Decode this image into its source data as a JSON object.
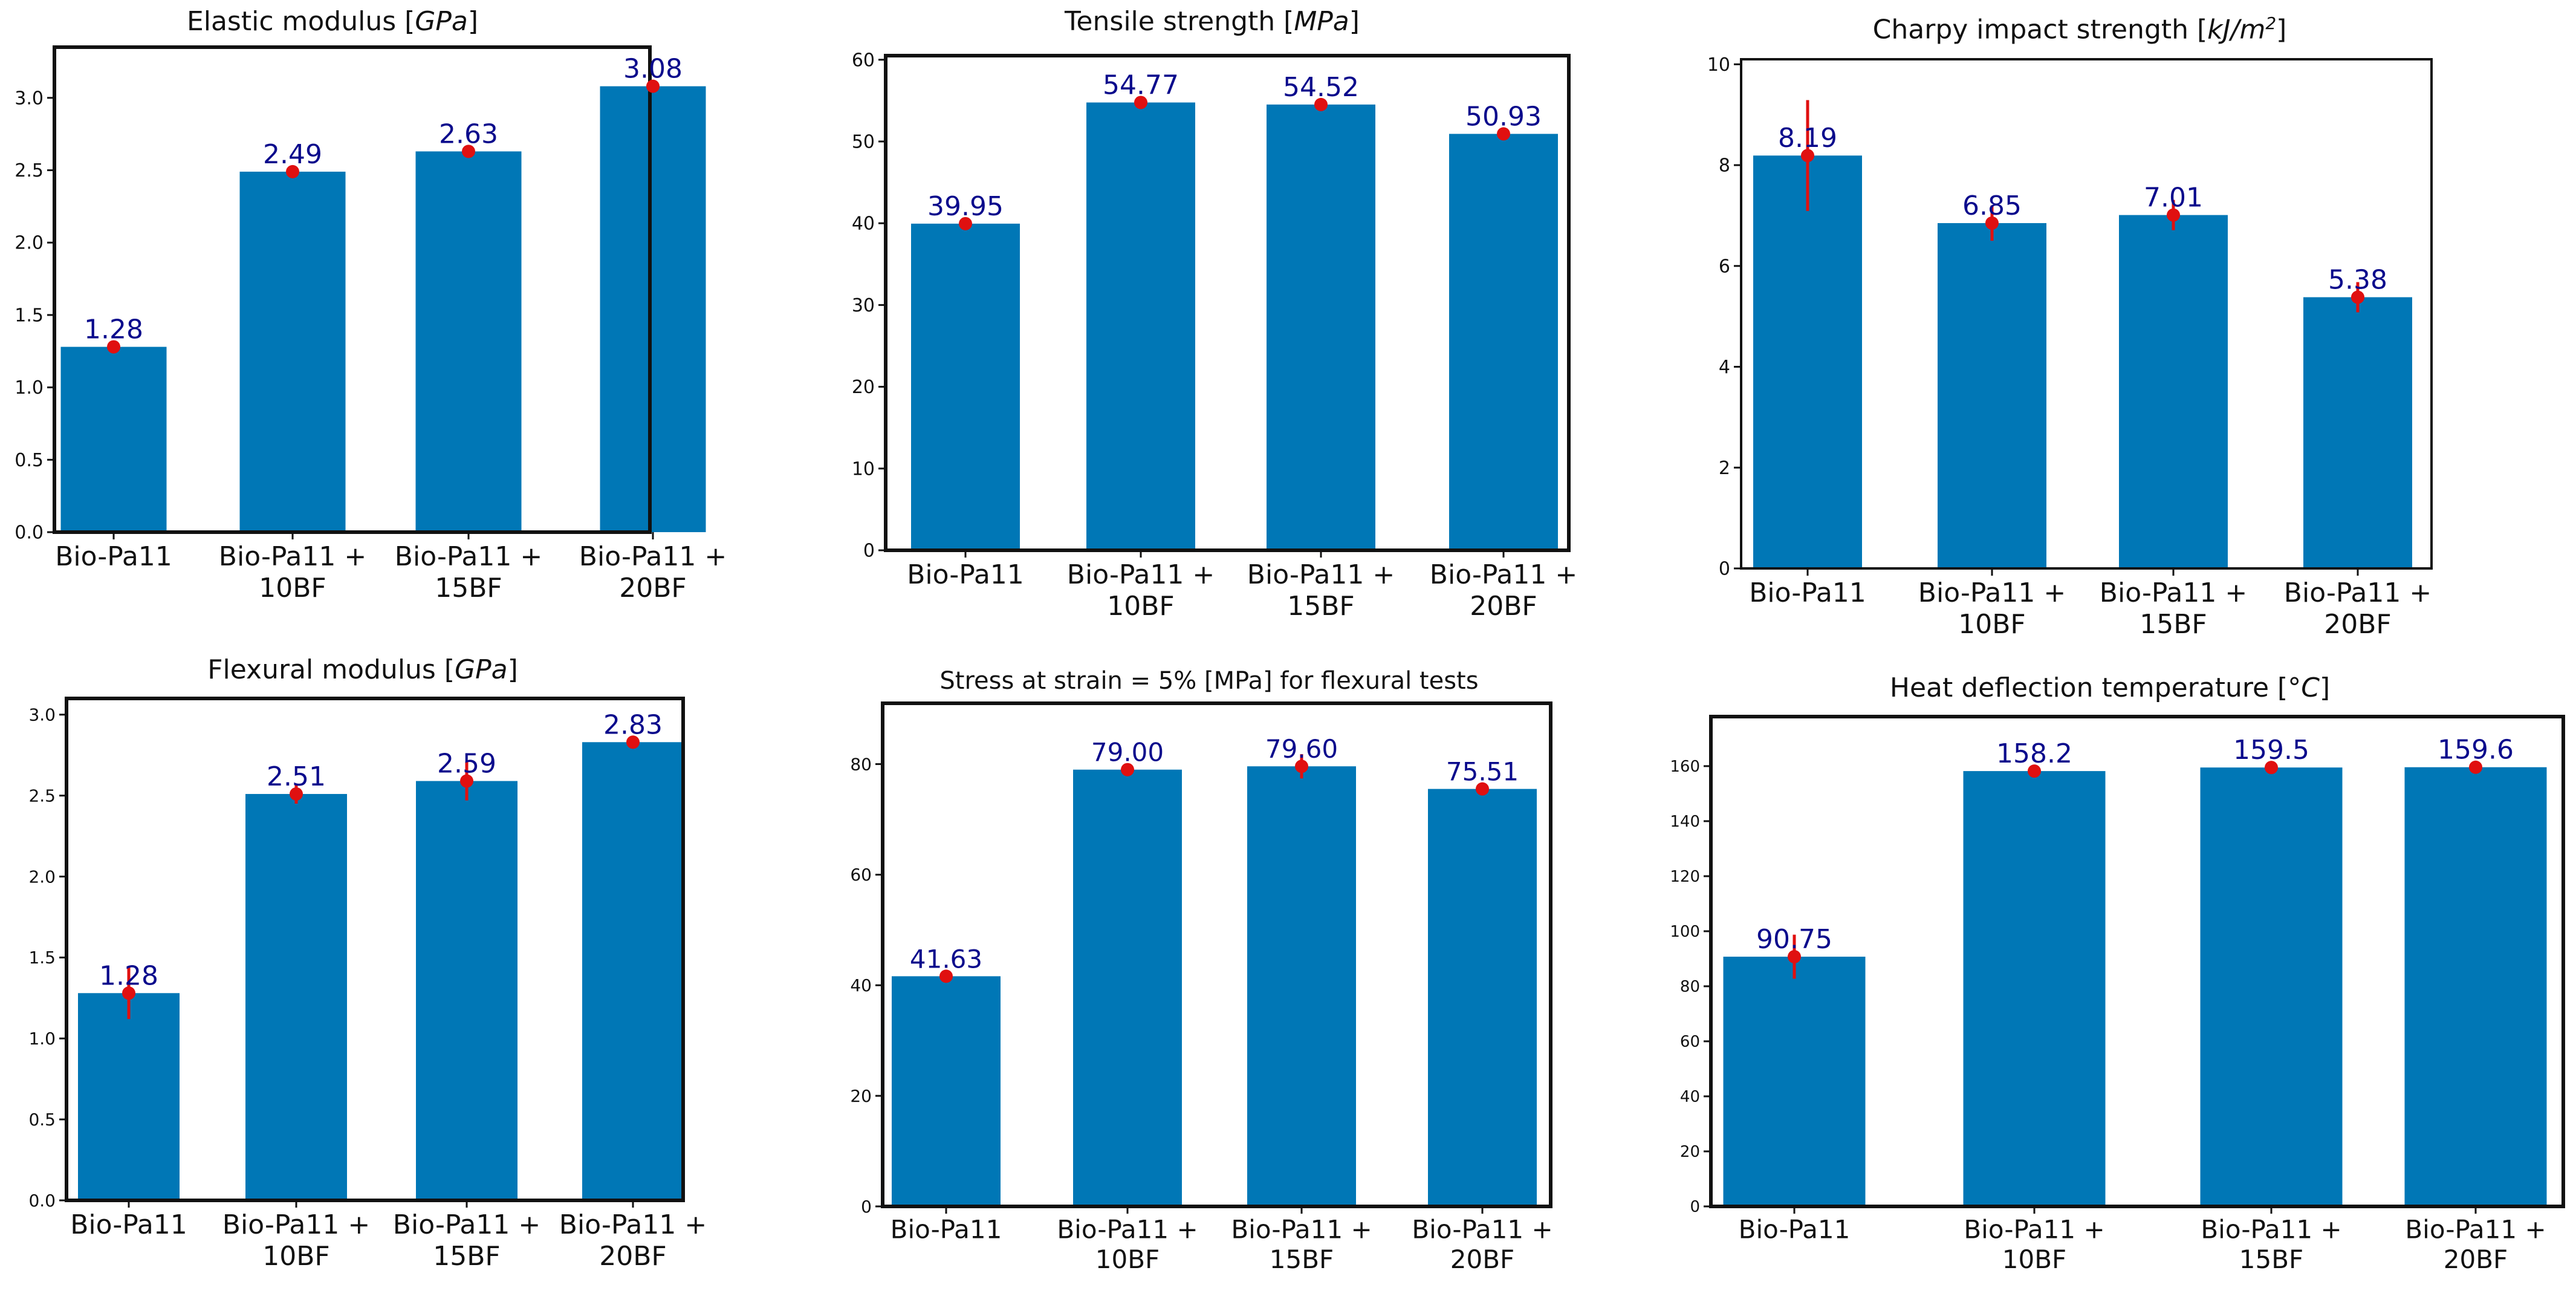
{
  "colors": {
    "bar": "#0077b6",
    "label": "#0a0a8c",
    "marker": "#e01010",
    "frame": "#111111"
  },
  "chart_data": [
    {
      "type": "bar",
      "title": "Elastic modulus",
      "unit": "GPa",
      "categories": [
        "Bio-Pa11",
        "Bio-Pa11 +\n10BF",
        "Bio-Pa11 +\n15BF",
        "Bio-Pa11 +\n20BF"
      ],
      "values": [
        1.28,
        2.49,
        2.63,
        3.08
      ],
      "value_labels": [
        "1.28",
        "2.49",
        "2.63",
        "3.08"
      ],
      "errors": [
        0.02,
        0.02,
        0.02,
        0.02
      ],
      "ylim": [
        0,
        3.35
      ],
      "yticks": [
        0.0,
        0.5,
        1.0,
        1.5,
        2.0,
        2.5,
        3.0
      ],
      "ytick_labels": [
        "0.0",
        "0.5",
        "1.0",
        "1.5",
        "2.0",
        "2.5",
        "3.0"
      ]
    },
    {
      "type": "bar",
      "title": "Tensile strength",
      "unit": "MPa",
      "categories": [
        "Bio-Pa11",
        "Bio-Pa11 +\n10BF",
        "Bio-Pa11 +\n15BF",
        "Bio-Pa11 +\n20BF"
      ],
      "values": [
        39.95,
        54.77,
        54.52,
        50.93
      ],
      "value_labels": [
        "39.95",
        "54.77",
        "54.52",
        "50.93"
      ],
      "errors": [
        0.6,
        0.5,
        0.6,
        0.5
      ],
      "ylim": [
        0,
        60.5
      ],
      "yticks": [
        0,
        10,
        20,
        30,
        40,
        50,
        60
      ],
      "ytick_labels": [
        "0",
        "10",
        "20",
        "30",
        "40",
        "50",
        "60"
      ]
    },
    {
      "type": "bar",
      "title": "Charpy impact strength",
      "unit": "kJ/m",
      "unit_sup": "2",
      "categories": [
        "Bio-Pa11",
        "Bio-Pa11 +\n10BF",
        "Bio-Pa11 +\n15BF",
        "Bio-Pa11 +\n20BF"
      ],
      "values": [
        8.19,
        6.85,
        7.01,
        5.38
      ],
      "value_labels": [
        "8.19",
        "6.85",
        "7.01",
        "5.38"
      ],
      "errors": [
        1.1,
        0.35,
        0.3,
        0.3
      ],
      "ylim": [
        0,
        10.1
      ],
      "yticks": [
        0,
        2,
        4,
        6,
        8,
        10
      ],
      "ytick_labels": [
        "0",
        "2",
        "4",
        "6",
        "8",
        "10"
      ]
    },
    {
      "type": "bar",
      "title": "Flexural modulus",
      "unit": "GPa",
      "categories": [
        "Bio-Pa11",
        "Bio-Pa11 +\n10BF",
        "Bio-Pa11 +\n15BF",
        "Bio-Pa11 +\n20BF"
      ],
      "values": [
        1.28,
        2.51,
        2.59,
        2.83
      ],
      "value_labels": [
        "1.28",
        "2.51",
        "2.59",
        "2.83"
      ],
      "errors": [
        0.16,
        0.06,
        0.12,
        0.04
      ],
      "ylim": [
        0,
        3.1
      ],
      "yticks": [
        0.0,
        0.5,
        1.0,
        1.5,
        2.0,
        2.5,
        3.0
      ],
      "ytick_labels": [
        "0.0",
        "0.5",
        "1.0",
        "1.5",
        "2.0",
        "2.5",
        "3.0"
      ]
    },
    {
      "type": "bar",
      "title": "Stress at strain = 5% [MPa] for flexural tests",
      "unit": "",
      "categories": [
        "Bio-Pa11",
        "Bio-Pa11 +\n10BF",
        "Bio-Pa11 +\n15BF",
        "Bio-Pa11 +\n20BF"
      ],
      "values": [
        41.63,
        79.0,
        79.6,
        75.51
      ],
      "value_labels": [
        "41.63",
        "79.00",
        "79.60",
        "75.51"
      ],
      "errors": [
        0.6,
        0.8,
        2.2,
        0.6
      ],
      "ylim": [
        0,
        91
      ],
      "yticks": [
        0,
        20,
        40,
        60,
        80
      ],
      "ytick_labels": [
        "0",
        "20",
        "40",
        "60",
        "80"
      ]
    },
    {
      "type": "bar",
      "title": "Heat deflection temperature",
      "unit": "°C",
      "categories": [
        "Bio-Pa11",
        "Bio-Pa11 +\n10BF",
        "Bio-Pa11 +\n15BF",
        "Bio-Pa11 +\n20BF"
      ],
      "values": [
        90.75,
        158.2,
        159.5,
        159.6
      ],
      "value_labels": [
        "90.75",
        "158.2",
        "159.5",
        "159.6"
      ],
      "errors": [
        8.0,
        2.0,
        2.0,
        2.0
      ],
      "ylim": [
        0,
        178
      ],
      "yticks": [
        0,
        20,
        40,
        60,
        80,
        100,
        120,
        140,
        160
      ],
      "ytick_labels": [
        "0",
        "20",
        "40",
        "60",
        "80",
        "100",
        "120",
        "140",
        "160"
      ]
    }
  ]
}
